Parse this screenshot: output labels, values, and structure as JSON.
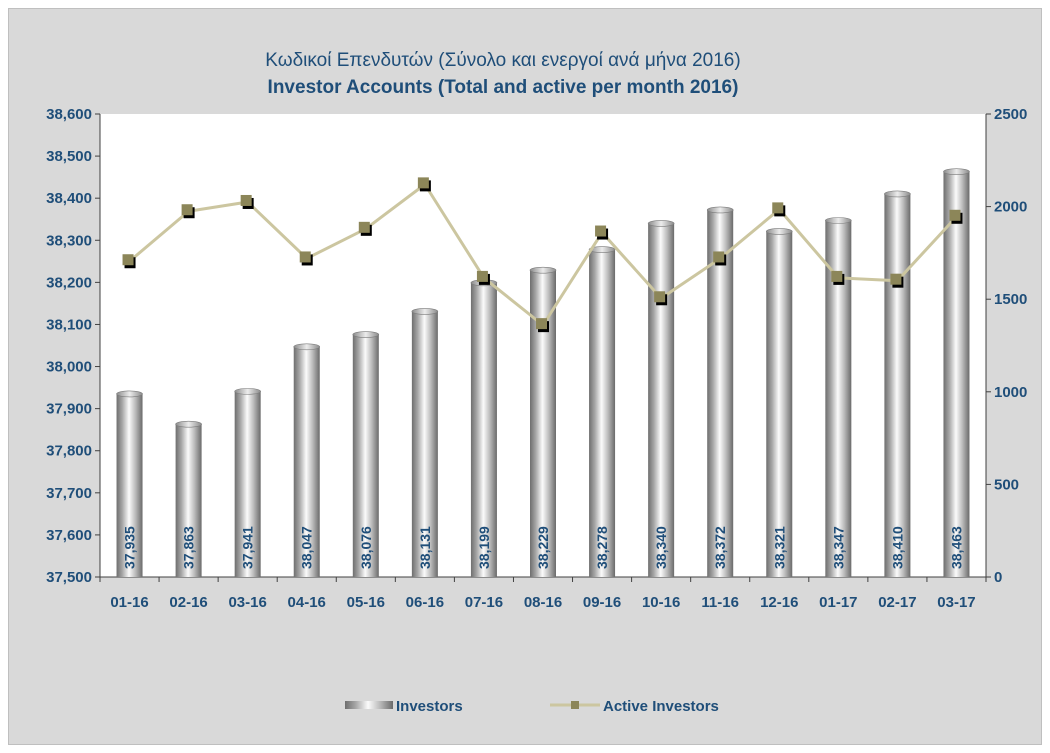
{
  "chart_data": {
    "type": "bar+line",
    "title": "Κωδικοί Επενδυτών (Σύνολο και ενεργοί ανά μήνα 2016)",
    "subtitle": "Investor Accounts (Total and active per month 2016)",
    "categories": [
      "01-16",
      "02-16",
      "03-16",
      "04-16",
      "05-16",
      "06-16",
      "07-16",
      "08-16",
      "09-16",
      "10-16",
      "11-16",
      "12-16",
      "01-17",
      "02-17",
      "03-17"
    ],
    "series": [
      {
        "name": "Investors",
        "type": "bar",
        "axis": "left",
        "values": [
          37935,
          37863,
          37941,
          38047,
          38076,
          38131,
          38199,
          38229,
          38278,
          38340,
          38372,
          38321,
          38347,
          38410,
          38463
        ],
        "labels": [
          "37,935",
          "37,863",
          "37,941",
          "38,047",
          "38,076",
          "38,131",
          "38,199",
          "38,229",
          "38,278",
          "38,340",
          "38,372",
          "38,321",
          "38,347",
          "38,410",
          "38,463"
        ]
      },
      {
        "name": "Active Investors",
        "type": "line",
        "axis": "right",
        "values": [
          1705,
          1975,
          2025,
          1720,
          1880,
          2120,
          1615,
          1360,
          1860,
          1505,
          1720,
          1985,
          1615,
          1600,
          1945
        ]
      }
    ],
    "y_left": {
      "min": 37500,
      "max": 38600,
      "step": 100,
      "tick_labels": [
        "37,500",
        "37,600",
        "37,700",
        "37,800",
        "37,900",
        "38,000",
        "38,100",
        "38,200",
        "38,300",
        "38,400",
        "38,500",
        "38,600"
      ]
    },
    "y_right": {
      "min": 0,
      "max": 2500,
      "step": 500,
      "tick_labels": [
        "0",
        "500",
        "1000",
        "1500",
        "2000",
        "2500"
      ]
    },
    "grid": false,
    "legend_position": "bottom",
    "colors": {
      "background": "#d9d9d9",
      "plot_area": "#ffffff",
      "text": "#1f4e79",
      "line": "#ccc6a0",
      "marker": "#8c8659",
      "marker_shadow": "#000000",
      "bar_dark": "#7f7f7f",
      "bar_light": "#fafafa"
    }
  }
}
